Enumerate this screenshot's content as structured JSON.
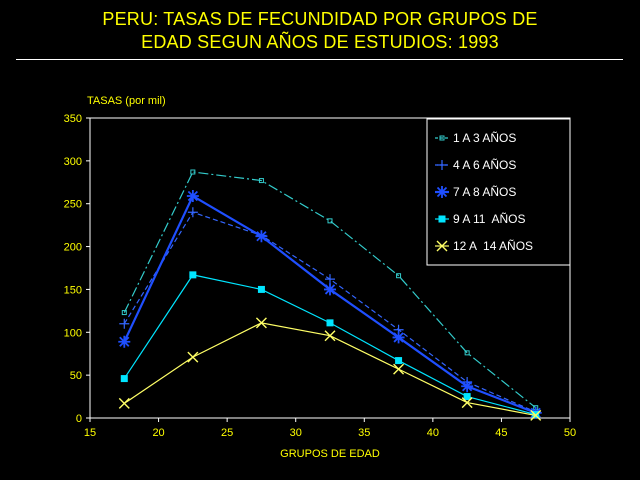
{
  "page": {
    "title_line1": "PERU: TASAS DE FECUNDIDAD POR GRUPOS DE",
    "title_line2": "EDAD SEGUN AÑOS DE ESTUDIOS: 1993"
  },
  "chart_data": {
    "type": "line",
    "title": "PERU: TASAS DE FECUNDIDAD POR GRUPOS DE EDAD SEGUN AÑOS DE ESTUDIOS: 1993",
    "xlabel": "GRUPOS DE EDAD",
    "ylabel": "TASAS (por mil)",
    "xlim": [
      15,
      50
    ],
    "ylim": [
      0,
      350
    ],
    "xticks": [
      15,
      20,
      25,
      30,
      35,
      40,
      45,
      50
    ],
    "yticks": [
      0,
      50,
      100,
      150,
      200,
      250,
      300,
      350
    ],
    "grid": false,
    "legend_position": "top-right",
    "x": [
      17.5,
      22.5,
      27.5,
      32.5,
      37.5,
      42.5,
      47.5
    ],
    "series": [
      {
        "name": "1 A 3 AÑOS",
        "color": "#33cccc",
        "marker": "small-square",
        "dash": "dashdot",
        "values": [
          123,
          287,
          277,
          230,
          166,
          76,
          12
        ]
      },
      {
        "name": "4 A 6 AÑOS",
        "color": "#3366ff",
        "marker": "plus",
        "dash": "dashed",
        "values": [
          110,
          240,
          213,
          162,
          103,
          42,
          7
        ]
      },
      {
        "name": "7 A 8 AÑOS",
        "color": "#1f4fff",
        "marker": "asterisk",
        "dash": "solid",
        "values": [
          89,
          259,
          212,
          150,
          94,
          37,
          6
        ]
      },
      {
        "name": "9 A 11  AÑOS",
        "color": "#00e5ff",
        "marker": "filled-square",
        "dash": "solid",
        "values": [
          46,
          167,
          150,
          111,
          67,
          25,
          4
        ]
      },
      {
        "name": "12 A  14 AÑOS",
        "color": "#ffff66",
        "marker": "x",
        "dash": "solid",
        "values": [
          17,
          71,
          111,
          96,
          57,
          18,
          3
        ]
      }
    ]
  }
}
